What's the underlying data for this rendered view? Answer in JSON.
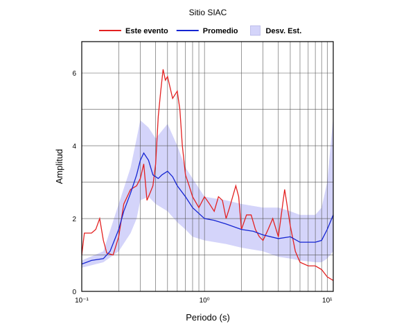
{
  "chart_data": {
    "type": "line",
    "title": "Sitio SIAC",
    "xlabel": "Periodo (s)",
    "ylabel": "Amplitud",
    "xscale": "log",
    "xlim": [
      0.1,
      11.2
    ],
    "ylim": [
      0,
      6.86
    ],
    "xticks": [
      {
        "value": 0.1,
        "label": "10⁻¹"
      },
      {
        "value": 1,
        "label": "10⁰"
      },
      {
        "value": 10,
        "label": "10¹"
      }
    ],
    "xminor": [
      0.2,
      0.3,
      0.4,
      0.5,
      0.6,
      0.7,
      0.8,
      0.9,
      2,
      3,
      4,
      5,
      6,
      7,
      8,
      9
    ],
    "yticks": [
      0,
      2,
      4,
      6
    ],
    "yminor": [
      1,
      3,
      5
    ],
    "grid": true,
    "legend": "top",
    "band": {
      "name": "Desv. Est.",
      "color": "#d4d4fa",
      "x": [
        0.1,
        0.15,
        0.2,
        0.25,
        0.28,
        0.3,
        0.35,
        0.4,
        0.5,
        0.6,
        0.7,
        0.8,
        1.0,
        1.5,
        2,
        3,
        4,
        5,
        6,
        8,
        9,
        10,
        11.2
      ],
      "lower": [
        0.65,
        0.8,
        1.1,
        1.6,
        2.0,
        2.5,
        2.6,
        2.4,
        2.2,
        1.9,
        1.7,
        1.5,
        1.4,
        1.3,
        1.2,
        1.1,
        0.95,
        0.9,
        0.85,
        0.8,
        0.8,
        0.9,
        1.1
      ],
      "upper": [
        0.85,
        1.1,
        2.4,
        3.4,
        4.2,
        4.7,
        4.5,
        4.2,
        4.6,
        4.0,
        3.4,
        3.1,
        2.6,
        2.5,
        2.4,
        2.3,
        2.3,
        2.2,
        2.1,
        2.1,
        2.3,
        3.0,
        4.8
      ]
    },
    "series": [
      {
        "name": "Este evento",
        "color": "#e32020",
        "x": [
          0.1,
          0.105,
          0.12,
          0.13,
          0.14,
          0.15,
          0.16,
          0.18,
          0.2,
          0.22,
          0.25,
          0.28,
          0.3,
          0.32,
          0.34,
          0.36,
          0.38,
          0.4,
          0.42,
          0.44,
          0.46,
          0.48,
          0.5,
          0.55,
          0.6,
          0.63,
          0.66,
          0.7,
          0.75,
          0.8,
          0.9,
          1.0,
          1.1,
          1.2,
          1.3,
          1.4,
          1.5,
          1.6,
          1.8,
          1.9,
          2.0,
          2.2,
          2.4,
          2.6,
          2.8,
          3.0,
          3.3,
          3.6,
          4.0,
          4.5,
          5.0,
          5.5,
          6.0,
          7.0,
          8.0,
          9.0,
          10,
          11.2
        ],
        "values": [
          1.0,
          1.6,
          1.6,
          1.7,
          2.0,
          1.4,
          1.05,
          1.0,
          1.5,
          2.4,
          2.8,
          2.9,
          3.1,
          3.5,
          2.5,
          2.7,
          2.9,
          3.5,
          4.8,
          5.5,
          6.1,
          5.8,
          5.9,
          5.3,
          5.5,
          5.0,
          4.0,
          3.2,
          2.9,
          2.6,
          2.3,
          2.6,
          2.4,
          2.2,
          2.6,
          2.5,
          2.0,
          2.3,
          2.9,
          2.6,
          1.7,
          2.1,
          2.1,
          1.7,
          1.5,
          1.4,
          1.7,
          2.0,
          1.5,
          2.8,
          1.8,
          1.1,
          0.8,
          0.7,
          0.7,
          0.6,
          0.4,
          0.3
        ]
      },
      {
        "name": "Promedio",
        "color": "#1424d2",
        "x": [
          0.1,
          0.12,
          0.15,
          0.17,
          0.2,
          0.22,
          0.25,
          0.28,
          0.3,
          0.32,
          0.35,
          0.38,
          0.42,
          0.45,
          0.5,
          0.55,
          0.6,
          0.7,
          0.8,
          1.0,
          1.2,
          1.5,
          2,
          2.5,
          3,
          4,
          5,
          6,
          8,
          9,
          10,
          11.2
        ],
        "values": [
          0.75,
          0.85,
          0.9,
          1.1,
          1.7,
          2.2,
          2.7,
          3.2,
          3.6,
          3.8,
          3.6,
          3.2,
          3.1,
          3.2,
          3.3,
          3.15,
          2.9,
          2.6,
          2.3,
          2.0,
          1.95,
          1.85,
          1.7,
          1.65,
          1.55,
          1.45,
          1.5,
          1.35,
          1.35,
          1.4,
          1.7,
          2.1
        ]
      }
    ]
  }
}
